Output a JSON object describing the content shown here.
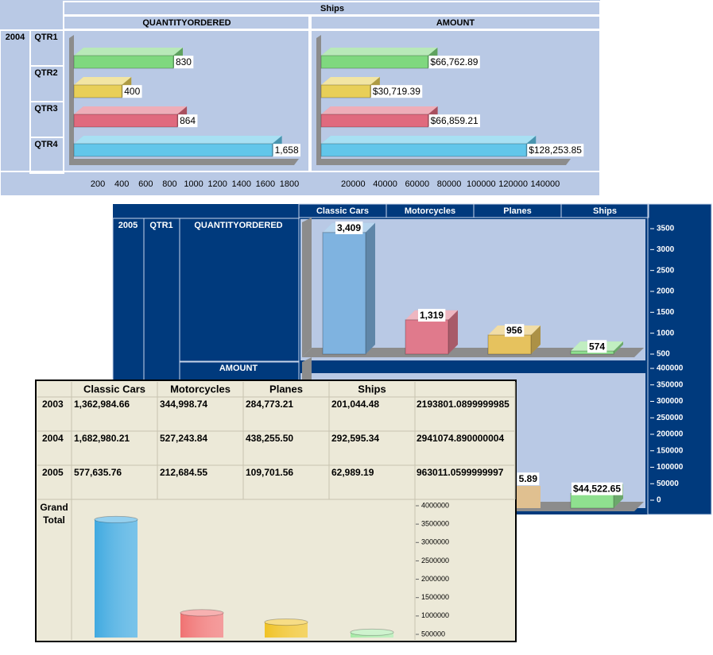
{
  "ships_2004": {
    "title": "Ships",
    "measures": [
      "QUANTITYORDERED",
      "AMOUNT"
    ],
    "year": "2004",
    "quarters": [
      "QTR1",
      "QTR2",
      "QTR3",
      "QTR4"
    ],
    "colors": [
      "#7fd87f",
      "#e8cf58",
      "#e06a7e",
      "#62c6ea"
    ],
    "charts": [
      {
        "type": "bar",
        "values": [
          830,
          400,
          864,
          1658
        ],
        "value_labels": [
          "830",
          "400",
          "864",
          "1,658"
        ],
        "xlim": [
          0,
          1800
        ],
        "xticks": [
          200,
          400,
          600,
          800,
          1000,
          1200,
          1400,
          1600,
          1800
        ]
      },
      {
        "type": "bar",
        "values": [
          66762.89,
          30719.39,
          66859.21,
          128253.85
        ],
        "value_labels": [
          "$66,762.89",
          "$30,719.39",
          "$66,859.21",
          "$128,253.85"
        ],
        "xlim": [
          0,
          150000
        ],
        "xticks": [
          20000,
          40000,
          60000,
          80000,
          100000,
          120000,
          140000
        ]
      }
    ]
  },
  "qtr1_2005": {
    "categories": [
      "Classic Cars",
      "Motorcycles",
      "Planes",
      "Ships"
    ],
    "year": "2005",
    "quarter": "QTR1",
    "measures": [
      "QUANTITYORDERED",
      "AMOUNT"
    ],
    "colors": [
      "#7fb3e0",
      "#e07a8c",
      "#e6c25e",
      "#8fe08f"
    ],
    "charts": [
      {
        "type": "bar",
        "values": [
          3409,
          1319,
          956,
          574
        ],
        "value_labels": [
          "3,409",
          "1,319",
          "956",
          "574"
        ],
        "ylim": [
          500,
          3500
        ],
        "yticks": [
          3500,
          3000,
          2500,
          2000,
          1500,
          1000,
          500
        ]
      },
      {
        "type": "bar",
        "values": [
          null,
          null,
          null,
          44522.65
        ],
        "value_labels": [
          null,
          null,
          null,
          "$44,522.65"
        ],
        "clipped_text": "5.89",
        "ylim": [
          0,
          400000
        ],
        "yticks": [
          400000,
          350000,
          300000,
          250000,
          200000,
          150000,
          100000,
          50000,
          0
        ]
      }
    ]
  },
  "summary": {
    "columns": [
      "Classic Cars",
      "Motorcycles",
      "Planes",
      "Ships"
    ],
    "rows": [
      {
        "label": "2003",
        "cells": [
          "1,362,984.66",
          "344,998.74",
          "284,773.21",
          "201,044.48"
        ],
        "total": "2193801.0899999985"
      },
      {
        "label": "2004",
        "cells": [
          "1,682,980.21",
          "527,243.84",
          "438,255.50",
          "292,595.34"
        ],
        "total": "2941074.890000004"
      },
      {
        "label": "2005",
        "cells": [
          "577,635.76",
          "212,684.55",
          "109,701.56",
          "62,989.19"
        ],
        "total": "963011.0599999997"
      }
    ],
    "grand_total": {
      "label": "Grand Total",
      "chart": {
        "type": "bar",
        "shape": "cylinder",
        "values": [
          3623600.63,
          1084927.13,
          832730.27,
          556629.01
        ],
        "colors": [
          "#3fa9e0",
          "#f07272",
          "#f0c224",
          "#a6eaa6"
        ],
        "ylim": [
          500000,
          4000000
        ],
        "yticks": [
          4000000,
          3500000,
          3000000,
          2500000,
          2000000,
          1500000,
          1000000,
          500000
        ]
      }
    }
  }
}
